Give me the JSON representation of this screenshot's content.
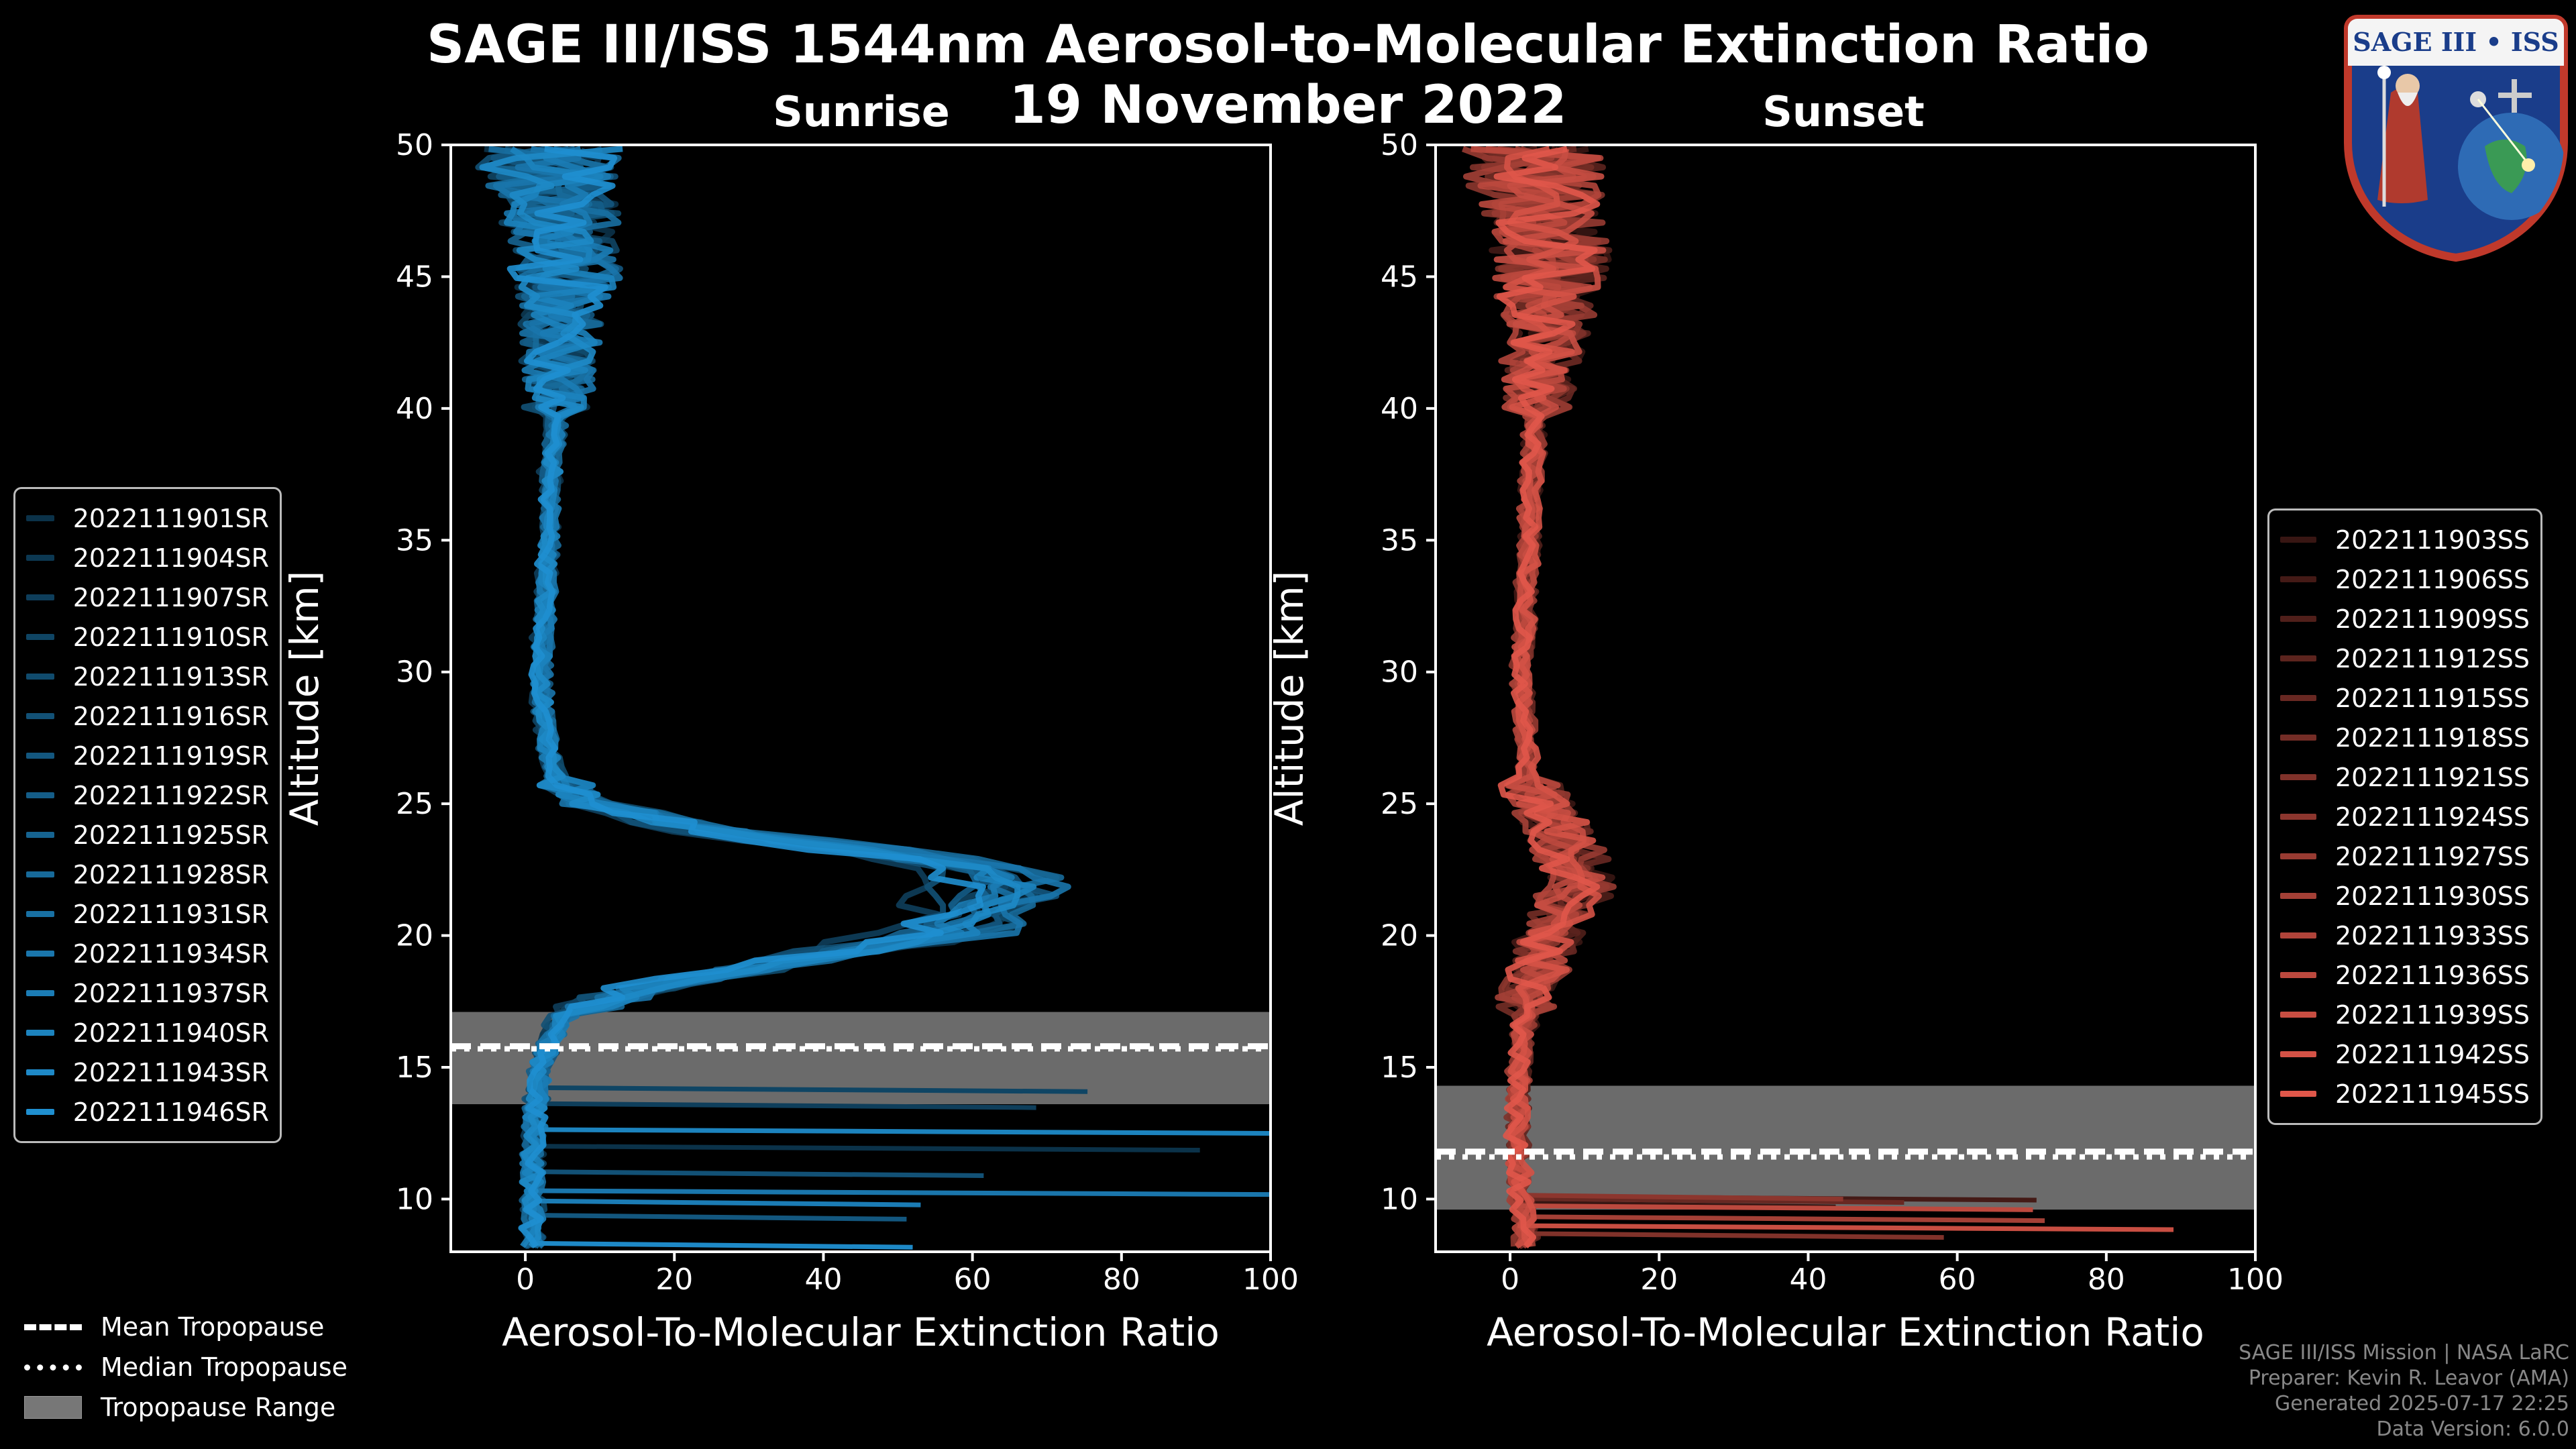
{
  "title": "SAGE III/ISS 1544nm Aerosol-to-Molecular Extinction Ratio",
  "date": "19 November 2022",
  "logo_text": "SAGE III • ISS",
  "credits": {
    "line1": "SAGE III/ISS Mission | NASA LaRC",
    "line2": "Preparer: Kevin R. Leavor (AMA)",
    "line3": "Generated 2025-07-17 22:25",
    "line4": "Data Version: 6.0.0"
  },
  "tropopause_legend": {
    "mean": "Mean Tropopause",
    "median": "Median Tropopause",
    "range": "Tropopause Range"
  },
  "colors": {
    "sunrise": "#1f8fd0",
    "sunset": "#e0574a",
    "tropo_range": "#777777"
  },
  "chart_data": [
    {
      "type": "line",
      "title": "Sunrise",
      "xlabel": "Aerosol-To-Molecular Extinction Ratio",
      "ylabel": "Altitude [km]",
      "xlim": [
        -10,
        100
      ],
      "ylim": [
        8,
        50
      ],
      "xticks": [
        "0",
        "20",
        "40",
        "60",
        "80",
        "100"
      ],
      "yticks": [
        "10",
        "15",
        "20",
        "25",
        "30",
        "35",
        "40",
        "45",
        "50"
      ],
      "tropopause": {
        "mean": 15.8,
        "median": 15.7,
        "min": 13.6,
        "max": 17.1
      },
      "series_names": [
        "2022111901SR",
        "2022111904SR",
        "2022111907SR",
        "2022111910SR",
        "2022111913SR",
        "2022111916SR",
        "2022111919SR",
        "2022111922SR",
        "2022111925SR",
        "2022111928SR",
        "2022111931SR",
        "2022111934SR",
        "2022111937SR",
        "2022111940SR",
        "2022111943SR",
        "2022111946SR"
      ],
      "profile": {
        "altitude": [
          8.5,
          10,
          12,
          14,
          15,
          16,
          17,
          18,
          19,
          20,
          21,
          22,
          22.5,
          23,
          24,
          25,
          26,
          27,
          28,
          30,
          32,
          35,
          38,
          40,
          42,
          44,
          46,
          48,
          50
        ],
        "ratio": [
          1,
          1,
          1,
          1.5,
          2,
          3,
          5,
          15,
          35,
          55,
          60,
          62,
          60,
          50,
          25,
          8,
          4,
          3,
          2.5,
          2,
          2.5,
          3,
          3.5,
          4,
          4.5,
          5,
          5.5,
          4,
          3
        ]
      }
    },
    {
      "type": "line",
      "title": "Sunset",
      "xlabel": "Aerosol-To-Molecular Extinction Ratio",
      "ylabel": "Altitude [km]",
      "xlim": [
        -10,
        100
      ],
      "ylim": [
        8,
        50
      ],
      "xticks": [
        "0",
        "20",
        "40",
        "60",
        "80",
        "100"
      ],
      "yticks": [
        "10",
        "15",
        "20",
        "25",
        "30",
        "35",
        "40",
        "45",
        "50"
      ],
      "tropopause": {
        "mean": 11.8,
        "median": 11.6,
        "min": 9.6,
        "max": 14.3
      },
      "series_names": [
        "2022111903SS",
        "2022111906SS",
        "2022111909SS",
        "2022111912SS",
        "2022111915SS",
        "2022111918SS",
        "2022111921SS",
        "2022111924SS",
        "2022111927SS",
        "2022111930SS",
        "2022111933SS",
        "2022111936SS",
        "2022111939SS",
        "2022111942SS",
        "2022111945SS"
      ],
      "profile": {
        "altitude": [
          8.5,
          10,
          12,
          14,
          16,
          18,
          20,
          21,
          22,
          23,
          24,
          25,
          26,
          28,
          30,
          32,
          35,
          38,
          40,
          42,
          44,
          46,
          48,
          50
        ],
        "ratio": [
          2,
          1.5,
          1,
          1,
          1.5,
          3,
          5,
          7,
          10,
          8,
          7,
          4,
          2.5,
          2,
          1.5,
          2,
          2.5,
          3,
          3.5,
          4,
          5,
          5.5,
          4,
          3
        ]
      }
    }
  ]
}
